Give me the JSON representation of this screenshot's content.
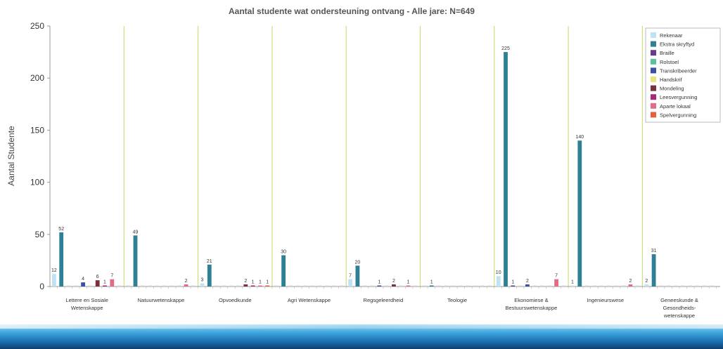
{
  "chart_data": {
    "type": "bar",
    "title": "Aantal studente wat ondersteuning ontvang - Alle jare: N=649",
    "xlabel": "",
    "ylabel": "Aantal Studente",
    "ylim": [
      0,
      250
    ],
    "yticks": [
      0,
      50,
      100,
      150,
      200,
      250
    ],
    "grid": "vertical separators between categories",
    "legend_position": "top-right",
    "categories": [
      "Lettere en Sosiale Wetenskappe",
      "Natuurwetenskappe",
      "Opvoedkunde",
      "Agri Wetenskappe",
      "Regsgeleerdheid",
      "Teologie",
      "Ekonomiese & Bestuurswetenskappe",
      "Ingenieurswese",
      "Geneeskunde & Gesondheids-wetenskappe"
    ],
    "category_lines": [
      [
        "Lettere en Sosiale",
        "Wetenskappe"
      ],
      [
        "Natuurwetenskappe"
      ],
      [
        "Opvoedkunde"
      ],
      [
        "Agri Wetenskappe"
      ],
      [
        "Regsgeleerdheid"
      ],
      [
        "Teologie"
      ],
      [
        "Ekonomiese &",
        "Bestuurswetenskappe"
      ],
      [
        "Ingenieurswese"
      ],
      [
        "Geneeskunde &",
        "Gesondheids-",
        "wetenskappe"
      ]
    ],
    "series": [
      {
        "name": "Rekenaar",
        "color": "#bfe3f5",
        "values": [
          12,
          0,
          3,
          0,
          7,
          0,
          10,
          1,
          2
        ]
      },
      {
        "name": "Ekstra skryftyd",
        "color": "#2f7f95",
        "values": [
          52,
          49,
          21,
          30,
          20,
          1,
          225,
          140,
          31
        ]
      },
      {
        "name": "Braille",
        "color": "#6a3b8c",
        "values": [
          0,
          0,
          0,
          0,
          0,
          0,
          1,
          0,
          0
        ]
      },
      {
        "name": "Rolstoel",
        "color": "#5cbf9d",
        "values": [
          0,
          0,
          0,
          0,
          0,
          0,
          0,
          0,
          0
        ]
      },
      {
        "name": "Transkribeerder",
        "color": "#3b4fa3",
        "values": [
          4,
          0,
          0,
          0,
          1,
          0,
          2,
          0,
          0
        ]
      },
      {
        "name": "Handskrif",
        "color": "#e8e37a",
        "values": [
          0,
          0,
          0,
          0,
          0,
          0,
          0,
          0,
          0
        ]
      },
      {
        "name": "Mondeling",
        "color": "#7a2f3c",
        "values": [
          6,
          0,
          2,
          0,
          2,
          0,
          0,
          0,
          0
        ]
      },
      {
        "name": "Leesvergunning",
        "color": "#a8287a",
        "values": [
          1,
          0,
          1,
          0,
          0,
          0,
          0,
          0,
          0
        ]
      },
      {
        "name": "Aparte lokaal",
        "color": "#e36b8a",
        "values": [
          7,
          2,
          1,
          0,
          1,
          0,
          7,
          2,
          0
        ]
      },
      {
        "name": "Spelvergunning",
        "color": "#e8603a",
        "values": [
          0,
          0,
          1,
          0,
          0,
          0,
          0,
          0,
          0
        ]
      }
    ]
  }
}
